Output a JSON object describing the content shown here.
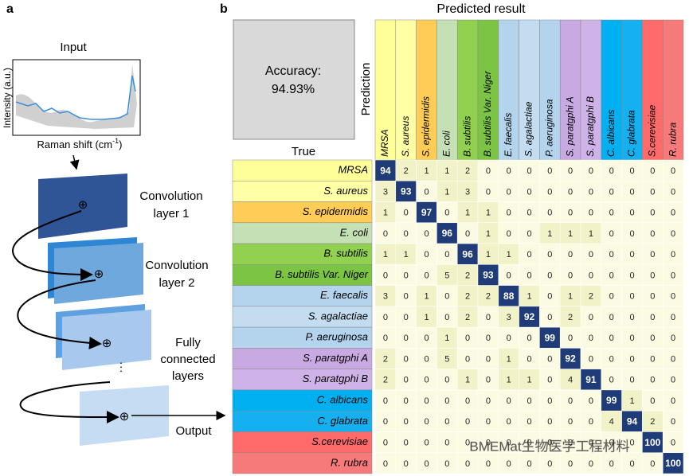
{
  "panel_a": {
    "label": "a",
    "input": "Input",
    "y_axis": "Intensity (a.u.)",
    "x_axis": "Raman shift (cm",
    "x_axis_sup": "-1",
    "x_axis_end": ")",
    "layer1": [
      "Convolution",
      "layer 1"
    ],
    "layer2": [
      "Convolution",
      "layer 2"
    ],
    "fc": [
      "Fully",
      "connected",
      "layers"
    ],
    "output": "Output"
  },
  "panel_b": {
    "label": "b",
    "header": "Predicted result",
    "accuracy": [
      "Accuracy:",
      "94.93%"
    ],
    "prediction": "Prediction",
    "true": "True",
    "classes": [
      {
        "name": "MRSA",
        "color": "#ffff99"
      },
      {
        "name": "S. aureus",
        "color": "#ffffa6"
      },
      {
        "name": "S. epidermidis",
        "color": "#ffcc55"
      },
      {
        "name": "E. coli",
        "color": "#c5e0b4"
      },
      {
        "name": "B. subtilis",
        "color": "#92d050"
      },
      {
        "name": "B. subtilis Var. Niger",
        "color": "#7cc444"
      },
      {
        "name": "E. faecalis",
        "color": "#b4d4ee"
      },
      {
        "name": "S. agalactiae",
        "color": "#c3dcf0"
      },
      {
        "name": "P. aeruginosa",
        "color": "#b4d4ee"
      },
      {
        "name": "S. paratgphi A",
        "color": "#c9a9e2"
      },
      {
        "name": "S. paratgphi B",
        "color": "#cfb3e8"
      },
      {
        "name": "C. albicans",
        "color": "#00b0f0"
      },
      {
        "name": "C. glabrata",
        "color": "#14b0f0"
      },
      {
        "name": "S.cerevisiae",
        "color": "#ff6b6b"
      },
      {
        "name": "R. rubra",
        "color": "#f77a7a"
      }
    ],
    "matrix": [
      [
        94,
        2,
        1,
        1,
        2,
        0,
        0,
        0,
        0,
        0,
        0,
        0,
        0,
        0,
        0
      ],
      [
        3,
        93,
        0,
        1,
        3,
        0,
        0,
        0,
        0,
        0,
        0,
        0,
        0,
        0,
        0
      ],
      [
        1,
        0,
        97,
        0,
        1,
        1,
        0,
        0,
        0,
        0,
        0,
        0,
        0,
        0,
        0
      ],
      [
        0,
        0,
        0,
        96,
        0,
        1,
        0,
        0,
        1,
        1,
        1,
        0,
        0,
        0,
        0
      ],
      [
        1,
        1,
        0,
        0,
        96,
        1,
        1,
        0,
        0,
        0,
        0,
        0,
        0,
        0,
        0
      ],
      [
        0,
        0,
        0,
        5,
        2,
        93,
        0,
        0,
        0,
        0,
        0,
        0,
        0,
        0,
        0
      ],
      [
        3,
        0,
        1,
        0,
        2,
        2,
        88,
        1,
        0,
        1,
        2,
        0,
        0,
        0,
        0
      ],
      [
        0,
        0,
        1,
        0,
        2,
        0,
        3,
        92,
        0,
        2,
        0,
        0,
        0,
        0,
        0
      ],
      [
        0,
        0,
        0,
        1,
        0,
        0,
        0,
        0,
        99,
        0,
        0,
        0,
        0,
        0,
        0
      ],
      [
        2,
        0,
        0,
        5,
        0,
        0,
        1,
        0,
        0,
        92,
        0,
        0,
        0,
        0,
        0
      ],
      [
        2,
        0,
        0,
        0,
        1,
        0,
        1,
        1,
        0,
        4,
        91,
        0,
        0,
        0,
        0
      ],
      [
        0,
        0,
        0,
        0,
        0,
        0,
        0,
        0,
        0,
        0,
        0,
        99,
        1,
        0,
        0
      ],
      [
        0,
        0,
        0,
        0,
        0,
        0,
        0,
        0,
        0,
        0,
        0,
        4,
        94,
        2,
        0
      ],
      [
        0,
        0,
        0,
        0,
        0,
        0,
        0,
        0,
        0,
        0,
        0,
        0,
        0,
        100,
        0
      ],
      [
        0,
        0,
        0,
        0,
        0,
        0,
        0,
        0,
        0,
        0,
        0,
        0,
        0,
        0,
        100
      ]
    ],
    "watermark": "BMEMat生物医学工程材料"
  }
}
